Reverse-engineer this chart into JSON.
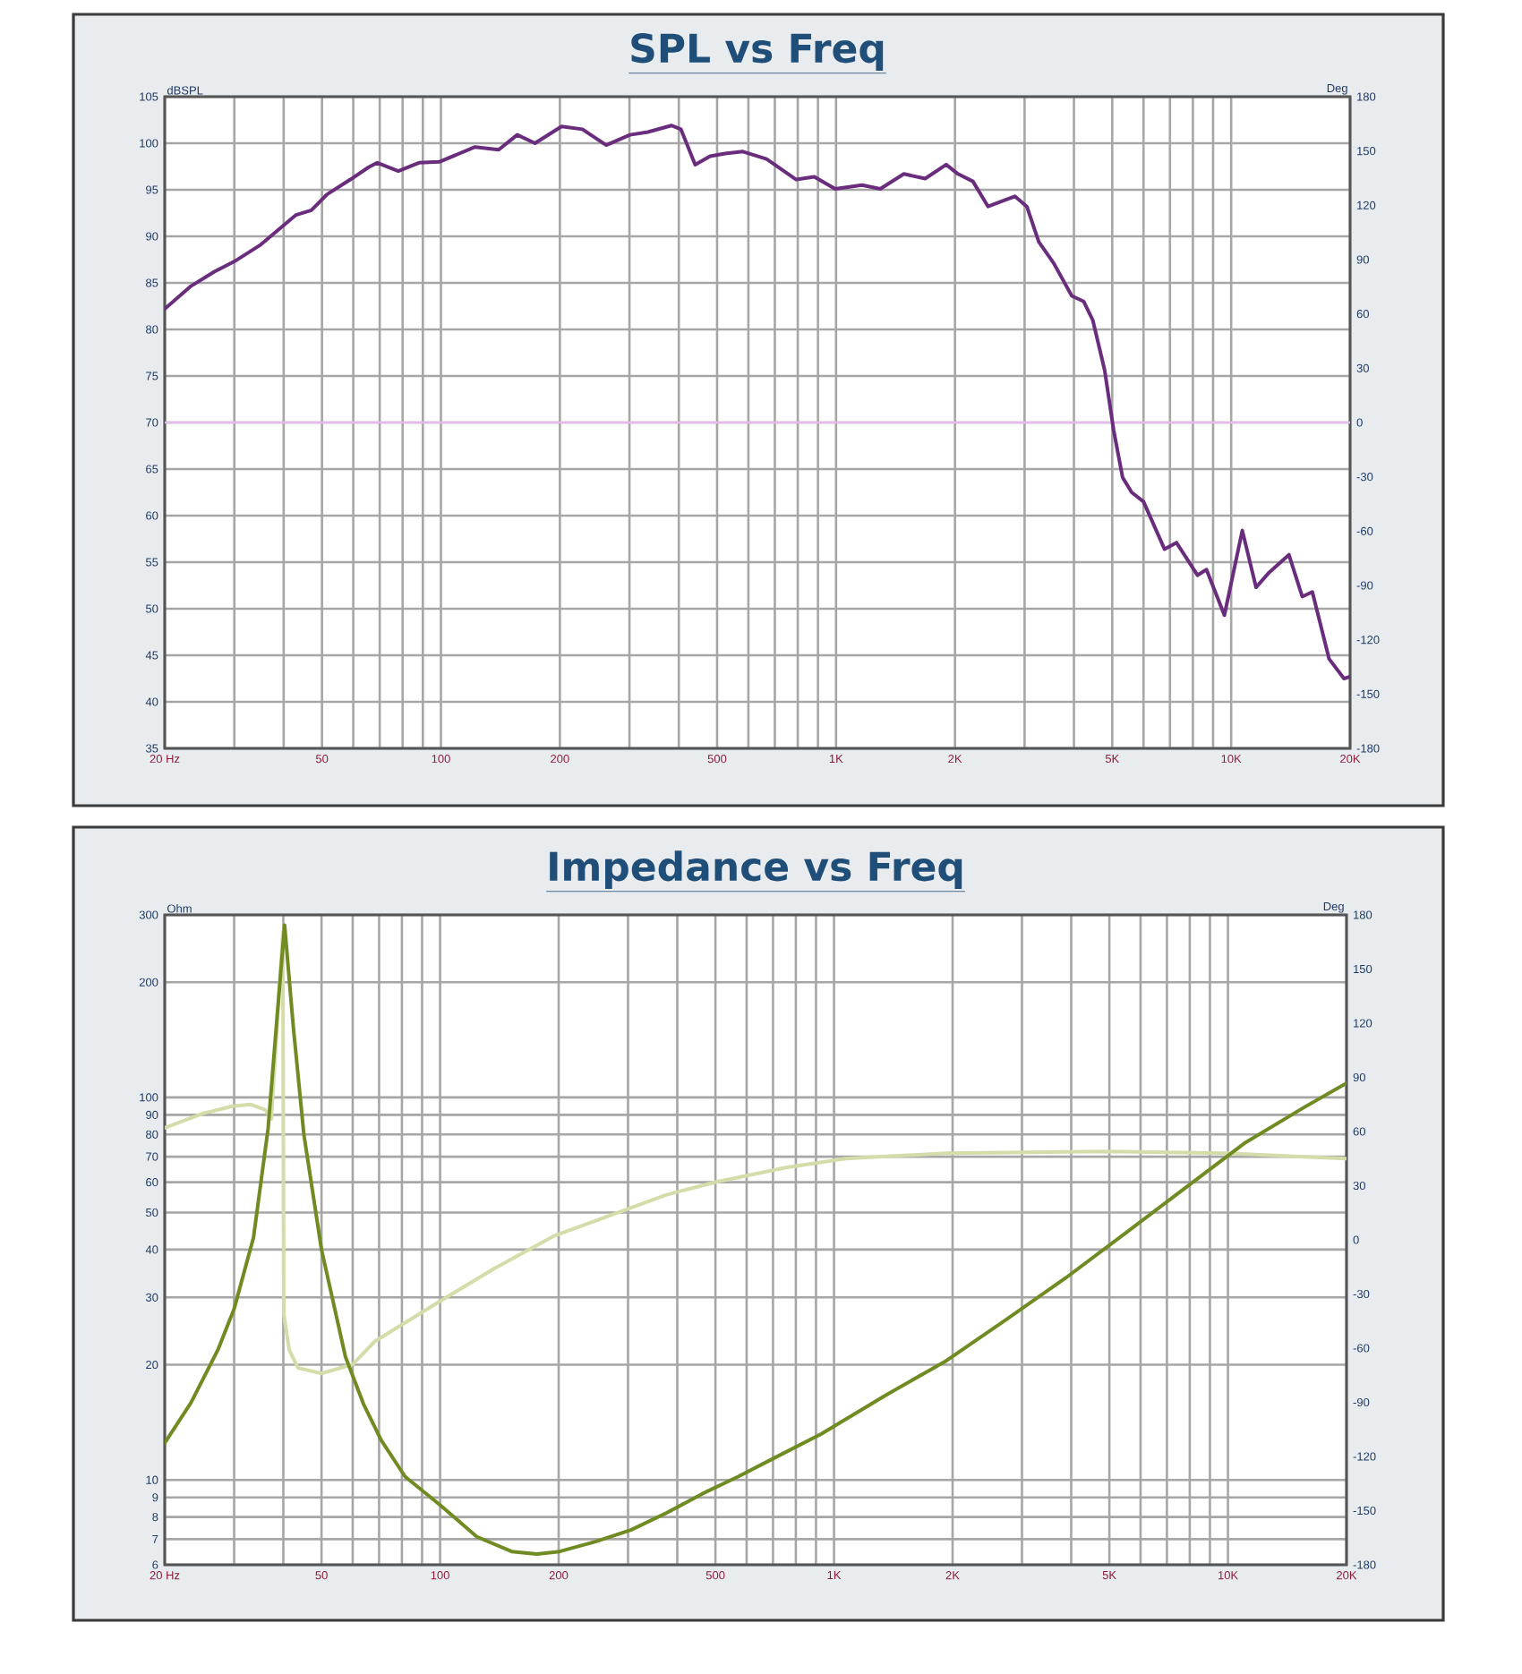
{
  "chart_data": [
    {
      "type": "line",
      "title": "SPL vs Freq",
      "ylabel": "dBSPL",
      "y2label": "Deg",
      "log": "x",
      "grid": true,
      "xlim": [
        20,
        20000
      ],
      "xticks": [
        {
          "value": 20,
          "label": "20 Hz"
        },
        {
          "value": 30,
          "label": null
        },
        {
          "value": 40,
          "label": null
        },
        50,
        {
          "value": 60,
          "label": null
        },
        {
          "value": 70,
          "label": null
        },
        {
          "value": 80,
          "label": null
        },
        {
          "value": 90,
          "label": null
        },
        100,
        200,
        {
          "value": 300,
          "label": null
        },
        {
          "value": 400,
          "label": null
        },
        500,
        {
          "value": 600,
          "label": null
        },
        {
          "value": 700,
          "label": null
        },
        {
          "value": 800,
          "label": null
        },
        {
          "value": 900,
          "label": null
        },
        {
          "value": 1000,
          "label": "1K"
        },
        {
          "value": 2000,
          "label": "2K"
        },
        {
          "value": 3000,
          "label": null
        },
        {
          "value": 4000,
          "label": null
        },
        {
          "value": 5000,
          "label": "5K"
        },
        {
          "value": 6000,
          "label": null
        },
        {
          "value": 7000,
          "label": null
        },
        {
          "value": 8000,
          "label": null
        },
        {
          "value": 9000,
          "label": null
        },
        {
          "value": 10000,
          "label": "10K"
        },
        {
          "value": 20000,
          "label": "20K"
        }
      ],
      "ylim": [
        35,
        105
      ],
      "yticks": [
        35,
        40,
        45,
        50,
        55,
        60,
        65,
        70,
        75,
        80,
        85,
        90,
        95,
        100,
        105
      ],
      "y2lim": [
        -180,
        180
      ],
      "y2ticks": [
        -180,
        -150,
        -120,
        -90,
        -60,
        -30,
        0,
        30,
        60,
        90,
        120,
        150,
        180
      ],
      "ref_lines": [
        {
          "axis": "y2",
          "value": 0,
          "color": "#e2bde8"
        }
      ],
      "x": [
        20,
        23.2,
        26.7,
        30,
        35,
        39,
        43,
        47,
        51.5,
        59,
        65.5,
        69,
        78,
        88,
        99,
        122,
        140,
        156,
        173,
        202,
        228,
        262,
        301,
        334,
        383,
        405,
        440,
        480,
        524,
        581,
        667,
        793,
        881,
        995,
        1164,
        1294,
        1485,
        1681,
        1900,
        2035,
        2220,
        2425,
        2643,
        2835,
        3040,
        3259,
        3557,
        3950,
        4235,
        4464,
        4785,
        5040,
        5312,
        5600,
        6000,
        6780,
        7270,
        8220,
        8660,
        9613,
        10670,
        11560,
        12480,
        14000,
        15130,
        16050,
        17700,
        19300,
        20000
      ],
      "series": [
        {
          "color": "#6a2d7d",
          "values": [
            82.2,
            84.6,
            86.2,
            87.3,
            89.1,
            90.8,
            92.3,
            92.8,
            94.5,
            96.1,
            97.4,
            97.9,
            97.0,
            97.9,
            98.0,
            99.6,
            99.3,
            100.9,
            100.0,
            101.8,
            101.5,
            99.8,
            100.9,
            101.2,
            101.9,
            101.5,
            97.7,
            98.6,
            98.9,
            99.1,
            98.3,
            96.1,
            96.4,
            95.1,
            95.5,
            95.1,
            96.7,
            96.2,
            97.7,
            96.7,
            95.9,
            93.2,
            93.8,
            94.3,
            93.2,
            89.4,
            87.1,
            83.6,
            83.0,
            81.0,
            75.6,
            69.2,
            64.1,
            62.5,
            61.5,
            56.4,
            57.1,
            53.6,
            54.2,
            49.3,
            58.4,
            52.3,
            53.9,
            55.8,
            51.3,
            51.8,
            44.6,
            42.5,
            42.7
          ]
        }
      ]
    },
    {
      "type": "line",
      "title": "Impedance vs Freq",
      "ylabel": "Ohm",
      "y2label": "Deg",
      "log": "xy",
      "grid": true,
      "xlim": [
        20,
        20000
      ],
      "xticks": [
        {
          "value": 20,
          "label": "20 Hz"
        },
        {
          "value": 30,
          "label": null
        },
        {
          "value": 40,
          "label": null
        },
        50,
        {
          "value": 60,
          "label": null
        },
        {
          "value": 70,
          "label": null
        },
        {
          "value": 80,
          "label": null
        },
        {
          "value": 90,
          "label": null
        },
        100,
        200,
        {
          "value": 300,
          "label": null
        },
        {
          "value": 400,
          "label": null
        },
        500,
        {
          "value": 600,
          "label": null
        },
        {
          "value": 700,
          "label": null
        },
        {
          "value": 800,
          "label": null
        },
        {
          "value": 900,
          "label": null
        },
        {
          "value": 1000,
          "label": "1K"
        },
        {
          "value": 2000,
          "label": "2K"
        },
        {
          "value": 3000,
          "label": null
        },
        {
          "value": 4000,
          "label": null
        },
        {
          "value": 5000,
          "label": "5K"
        },
        {
          "value": 6000,
          "label": null
        },
        {
          "value": 7000,
          "label": null
        },
        {
          "value": 8000,
          "label": null
        },
        {
          "value": 9000,
          "label": null
        },
        {
          "value": 10000,
          "label": "10K"
        },
        {
          "value": 20000,
          "label": "20K"
        }
      ],
      "ylim": [
        6,
        300
      ],
      "yticks": [
        6,
        7,
        8,
        9,
        10,
        20,
        30,
        40,
        50,
        60,
        70,
        80,
        90,
        100,
        200,
        300
      ],
      "y2lim": [
        -180,
        180
      ],
      "y2ticks": [
        -180,
        -150,
        -120,
        -90,
        -60,
        -30,
        0,
        30,
        60,
        90,
        120,
        150,
        180
      ],
      "series": [
        {
          "color": "#d5dca9",
          "axis": "y2",
          "x": [
            20,
            25,
            29.7,
            33,
            36,
            37.3,
            39.9,
            40.1,
            41.4,
            43.6,
            50,
            60,
            68.5,
            100,
            137,
            194,
            376,
            500,
            755,
            1070,
            1930,
            4930,
            9900,
            15600,
            20000
          ],
          "values": [
            62,
            70,
            74,
            75,
            72,
            67,
            171,
            -41,
            -61,
            -71,
            -74,
            -69,
            -56,
            -34,
            -16,
            2,
            25,
            32,
            40,
            45,
            48,
            49,
            48,
            46,
            45
          ]
        },
        {
          "color": "#6f8b22",
          "x": [
            20,
            23.3,
            27.3,
            30,
            33.6,
            36.6,
            38.6,
            40.3,
            42.4,
            45.1,
            50,
            57.5,
            63.9,
            70.9,
            81.5,
            100,
            124,
            152,
            176,
            201,
            248,
            305,
            376,
            463,
            571,
            704,
            929,
            1360,
            1930,
            2730,
            3870,
            5480,
            7760,
            10990,
            15560,
            20000
          ],
          "values": [
            12.5,
            15.9,
            21.9,
            28,
            43,
            83,
            164,
            282,
            153,
            80,
            40,
            21,
            15.8,
            12.7,
            10.2,
            8.6,
            7.1,
            6.5,
            6.4,
            6.5,
            6.9,
            7.4,
            8.2,
            9.2,
            10.2,
            11.4,
            13.2,
            16.7,
            20.5,
            26.2,
            33.7,
            44.1,
            57.8,
            75.8,
            94,
            109
          ]
        }
      ]
    }
  ]
}
